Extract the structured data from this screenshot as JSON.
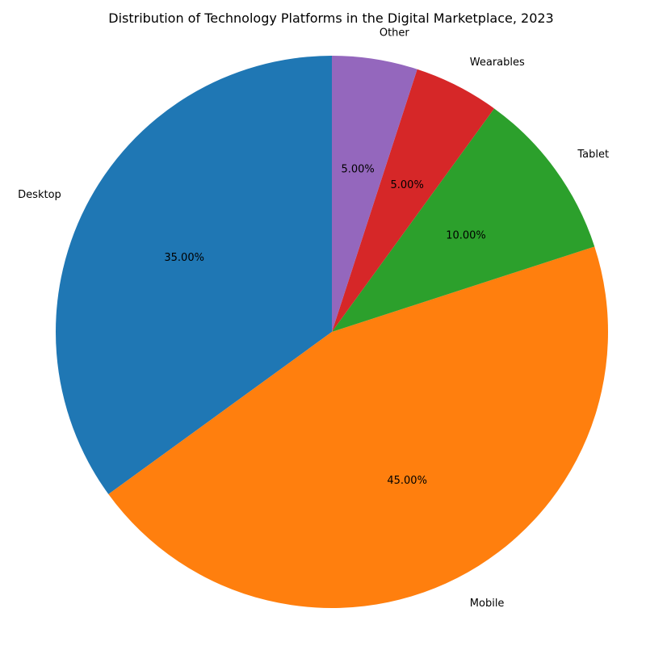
{
  "chart_data": {
    "type": "pie",
    "title": "Distribution of Technology Platforms in the Digital Marketplace, 2023",
    "categories": [
      "Desktop",
      "Mobile",
      "Tablet",
      "Wearables",
      "Other"
    ],
    "values": [
      35,
      45,
      10,
      5,
      5
    ],
    "percent_labels": [
      "35.00%",
      "45.00%",
      "10.00%",
      "5.00%",
      "5.00%"
    ],
    "colors": [
      "#1f77b4",
      "#ff7f0e",
      "#2ca02c",
      "#d62728",
      "#9467bd"
    ],
    "start_angle_deg": 90,
    "direction": "counterclockwise",
    "legend": "none"
  }
}
